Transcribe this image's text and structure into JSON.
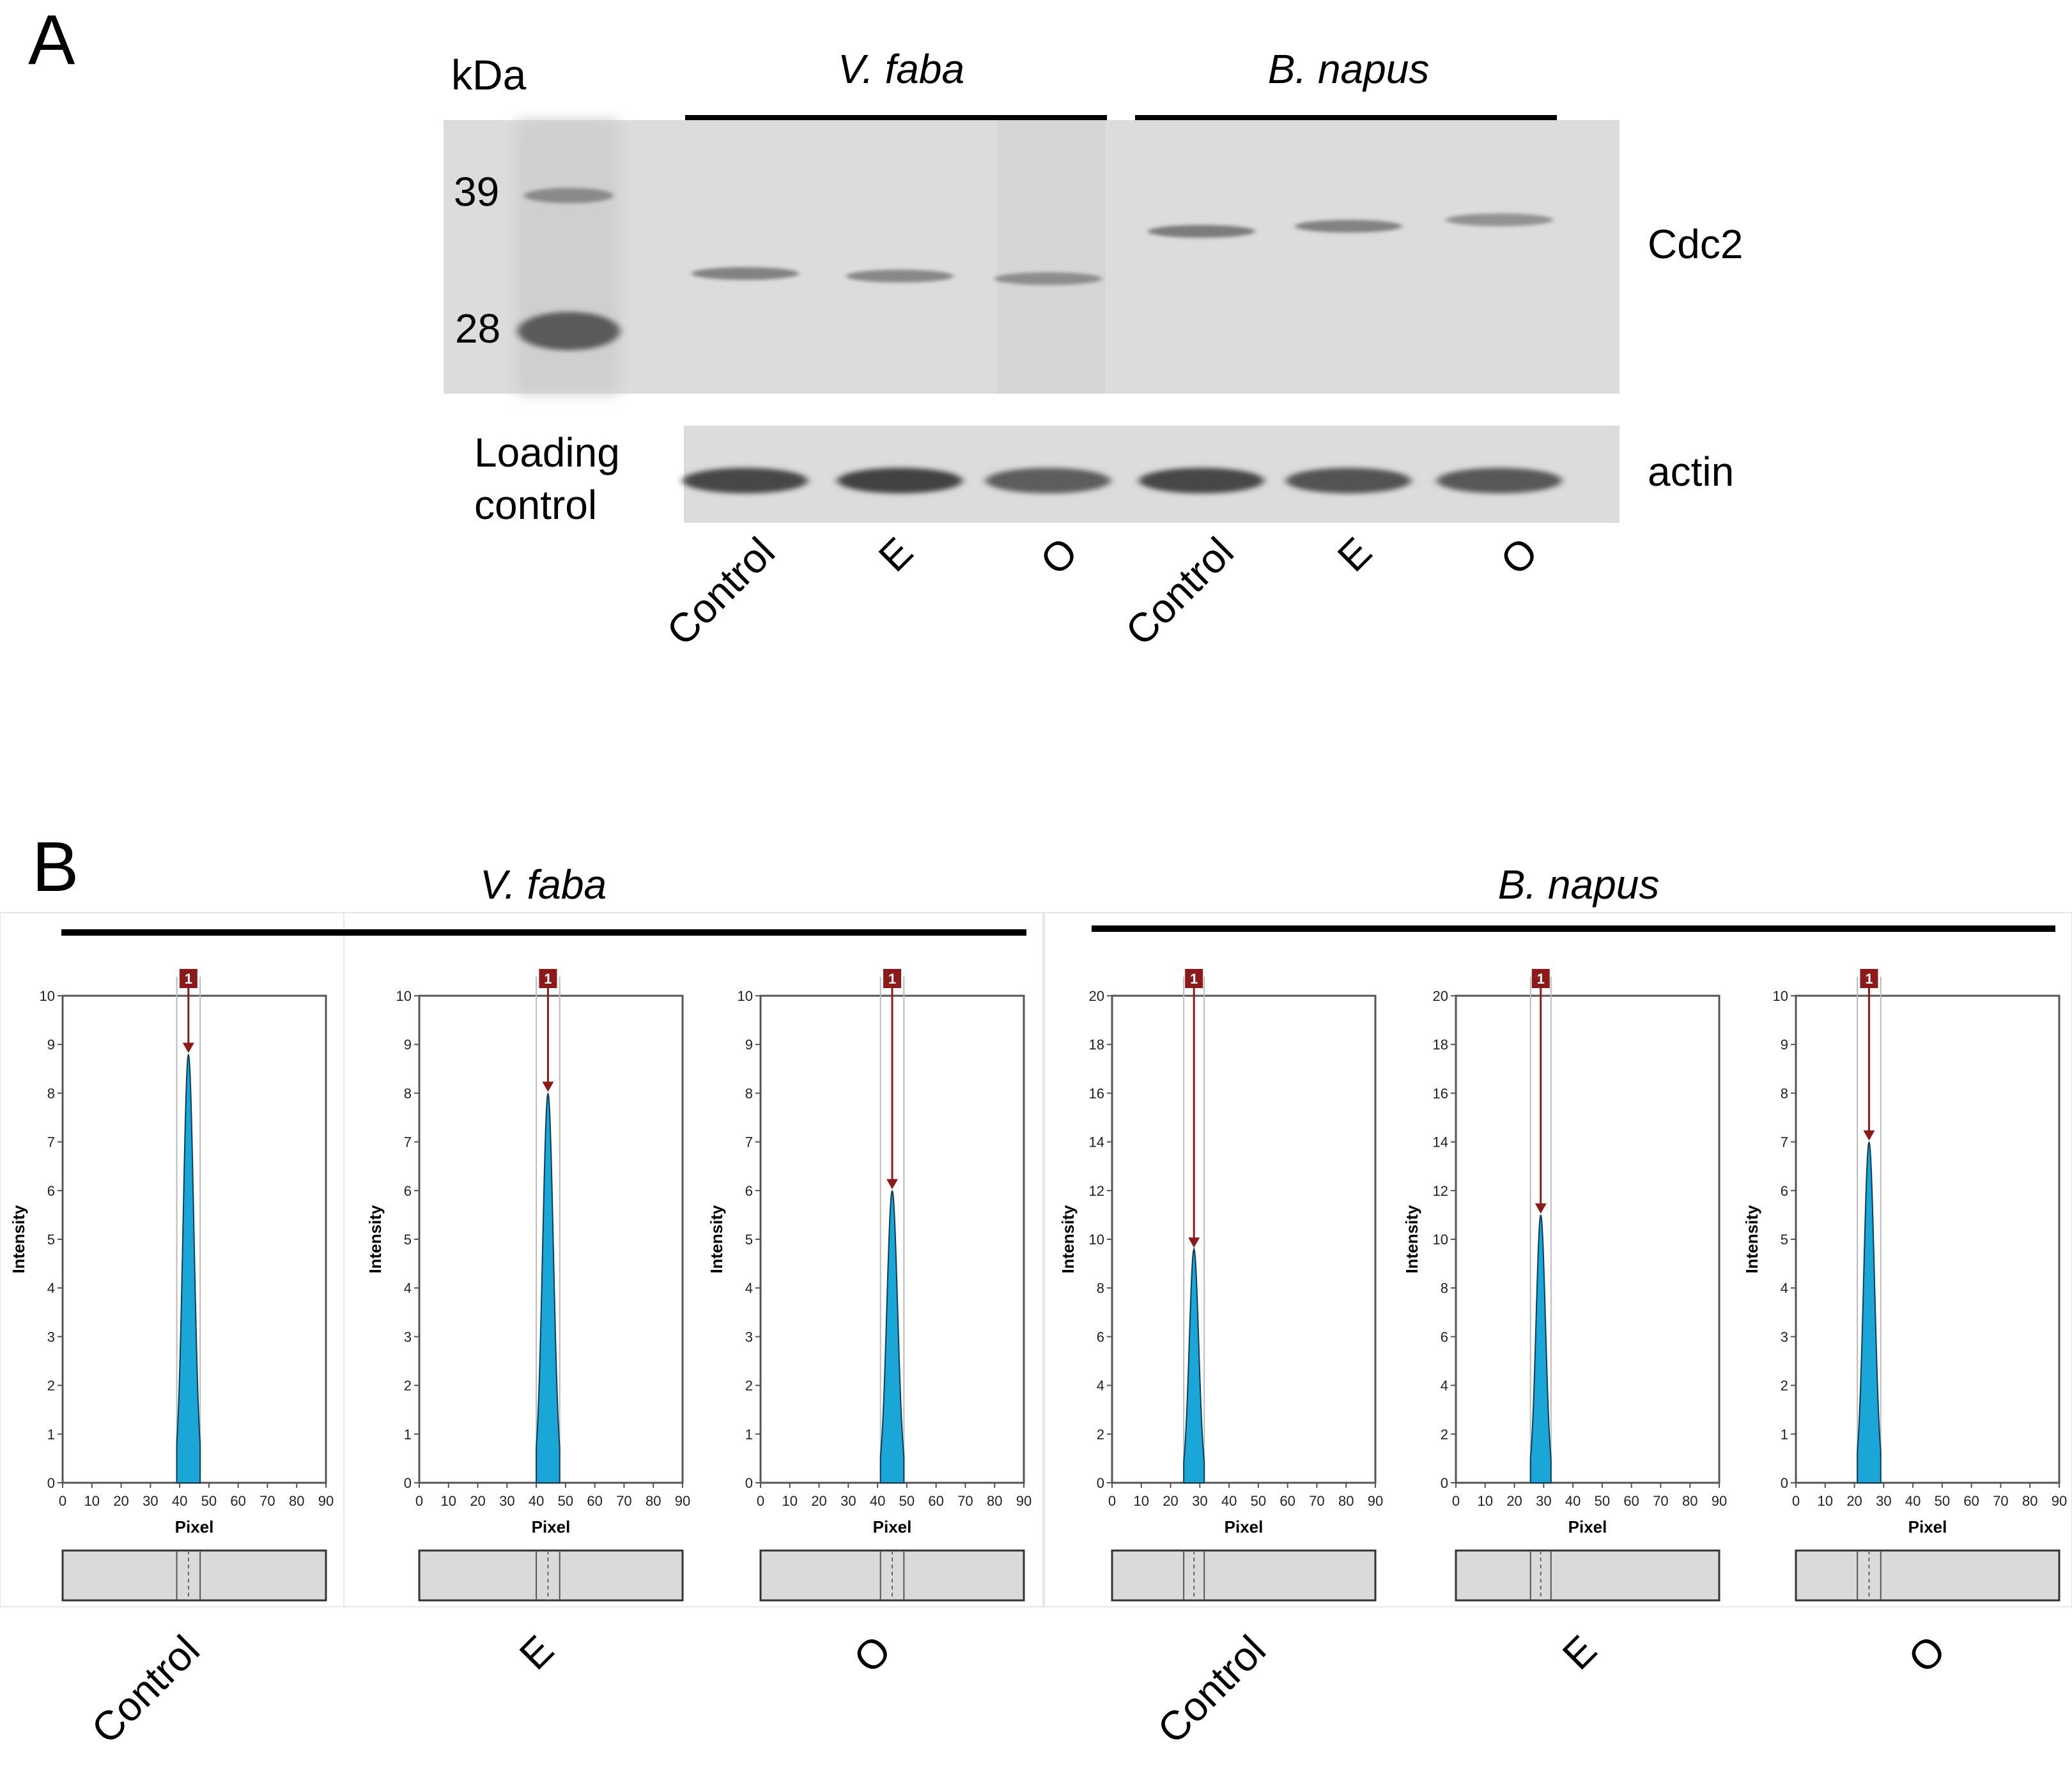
{
  "panel_a": {
    "letter": "A",
    "kda": "kDa",
    "markers": [
      "39",
      "28"
    ],
    "species": [
      "V. faba",
      "B. napus"
    ],
    "protein_label": "Cdc2",
    "loading_label_line1": "Loading",
    "loading_label_line2": "control",
    "actin_label": "actin",
    "lanes": [
      "Control",
      "E",
      "O",
      "Control",
      "E",
      "O"
    ],
    "cdc2_band_strength": [
      0.55,
      0.5,
      0.45,
      0.6,
      0.55,
      0.4
    ],
    "actin_band_strength": [
      0.9,
      0.95,
      0.7,
      0.9,
      0.8,
      0.75
    ]
  },
  "panel_b": {
    "letter": "B",
    "species": [
      "V. faba",
      "B. napus"
    ],
    "lanes": [
      "Control",
      "E",
      "O",
      "Control",
      "E",
      "O"
    ],
    "marker_label": "1"
  },
  "chart_data": [
    {
      "type": "area",
      "xlabel": "Pixel",
      "ylabel": "Intensity",
      "xlim": [
        0,
        90
      ],
      "ylim": [
        0,
        10
      ],
      "xticks": [
        0,
        10,
        20,
        30,
        40,
        50,
        60,
        70,
        80,
        90
      ],
      "yticks": [
        0,
        1,
        2,
        3,
        4,
        5,
        6,
        7,
        8,
        9,
        10
      ],
      "peak_x": 43,
      "peak_y": 8.8,
      "peak_halfwidth": 4
    },
    {
      "type": "area",
      "xlabel": "Pixel",
      "ylabel": "Intensity",
      "xlim": [
        0,
        90
      ],
      "ylim": [
        0,
        10
      ],
      "xticks": [
        0,
        10,
        20,
        30,
        40,
        50,
        60,
        70,
        80,
        90
      ],
      "yticks": [
        0,
        1,
        2,
        3,
        4,
        5,
        6,
        7,
        8,
        9,
        10
      ],
      "peak_x": 44,
      "peak_y": 8.0,
      "peak_halfwidth": 4
    },
    {
      "type": "area",
      "xlabel": "Pixel",
      "ylabel": "Intensity",
      "xlim": [
        0,
        90
      ],
      "ylim": [
        0,
        10
      ],
      "xticks": [
        0,
        10,
        20,
        30,
        40,
        50,
        60,
        70,
        80,
        90
      ],
      "yticks": [
        0,
        1,
        2,
        3,
        4,
        5,
        6,
        7,
        8,
        9,
        10
      ],
      "peak_x": 45,
      "peak_y": 6.0,
      "peak_halfwidth": 4
    },
    {
      "type": "area",
      "xlabel": "Pixel",
      "ylabel": "Intensity",
      "xlim": [
        0,
        90
      ],
      "ylim": [
        0,
        20
      ],
      "xticks": [
        0,
        10,
        20,
        30,
        40,
        50,
        60,
        70,
        80,
        90
      ],
      "yticks": [
        0,
        2,
        4,
        6,
        8,
        10,
        12,
        14,
        16,
        18,
        20
      ],
      "peak_x": 28,
      "peak_y": 9.6,
      "peak_halfwidth": 3.5
    },
    {
      "type": "area",
      "xlabel": "Pixel",
      "ylabel": "Intensity",
      "xlim": [
        0,
        90
      ],
      "ylim": [
        0,
        20
      ],
      "xticks": [
        0,
        10,
        20,
        30,
        40,
        50,
        60,
        70,
        80,
        90
      ],
      "yticks": [
        0,
        2,
        4,
        6,
        8,
        10,
        12,
        14,
        16,
        18,
        20
      ],
      "peak_x": 29,
      "peak_y": 11.0,
      "peak_halfwidth": 3.5
    },
    {
      "type": "area",
      "xlabel": "Pixel",
      "ylabel": "Intensity",
      "xlim": [
        0,
        90
      ],
      "ylim": [
        0,
        10
      ],
      "xticks": [
        0,
        10,
        20,
        30,
        40,
        50,
        60,
        70,
        80,
        90
      ],
      "yticks": [
        0,
        1,
        2,
        3,
        4,
        5,
        6,
        7,
        8,
        9,
        10
      ],
      "peak_x": 25,
      "peak_y": 7.0,
      "peak_halfwidth": 4
    }
  ],
  "colors": {
    "peak_fill": "#1aa7d8",
    "marker": "#8b1a1a",
    "blot_bg": "#d9d9d9",
    "axis": "#555555"
  }
}
